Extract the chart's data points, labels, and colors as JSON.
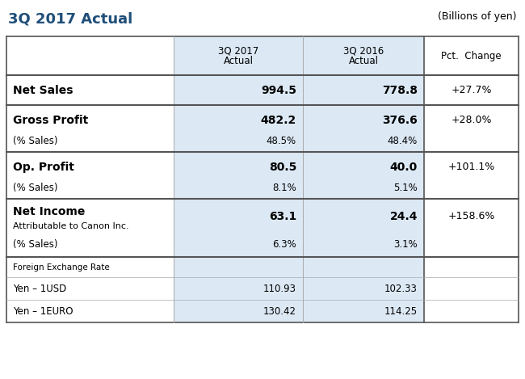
{
  "title": "3Q 2017 Actual",
  "subtitle": "(Billions of yen)",
  "title_color": "#1f4e79",
  "col_bg": "#dce9f5",
  "white_bg": "#ffffff",
  "border_light": "#aaaaaa",
  "border_dark": "#555555",
  "rows": [
    {
      "label": "Net Sales",
      "label_bold": true,
      "sub1": null,
      "sub2": null,
      "val1": "994.5",
      "val2": "778.8",
      "val3": "+27.7%",
      "type": "main"
    },
    {
      "label": "Gross Profit",
      "label_bold": true,
      "sub1": "(% Sales)",
      "sub2": null,
      "val1": "482.2",
      "val2": "376.6",
      "val3": "+28.0%",
      "subval1": "48.5%",
      "subval2": "48.4%",
      "type": "sub"
    },
    {
      "label": "Op. Profit",
      "label_bold": true,
      "sub1": "(% Sales)",
      "sub2": null,
      "val1": "80.5",
      "val2": "40.0",
      "val3": "+101.1%",
      "subval1": "8.1%",
      "subval2": "5.1%",
      "type": "sub"
    },
    {
      "label": "Net Income",
      "label_bold": true,
      "sub1": "Attributable to Canon Inc.",
      "sub2": "(% Sales)",
      "val1": "63.1",
      "val2": "24.4",
      "val3": "+158.6%",
      "subval1": "6.3%",
      "subval2": "3.1%",
      "type": "sub2"
    }
  ],
  "footer": [
    {
      "label": "Foreign Exchange Rate",
      "val1": "",
      "val2": "",
      "small": true
    },
    {
      "label": "Yen – 1USD",
      "val1": "110.93",
      "val2": "102.33",
      "small": false
    },
    {
      "label": "Yen – 1EURO",
      "val1": "130.42",
      "val2": "114.25",
      "small": false
    }
  ]
}
